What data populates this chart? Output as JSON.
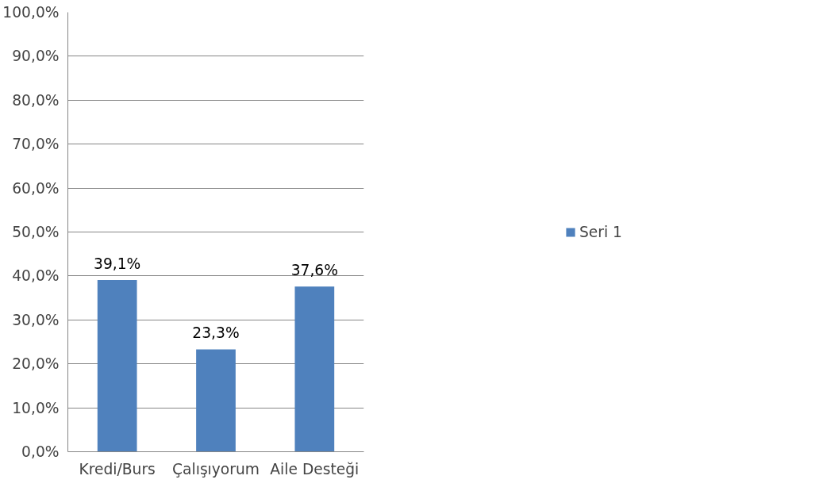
{
  "chart_data": {
    "type": "bar",
    "categories": [
      "Kredi/Burs",
      "Çalışıyorum",
      "Aile Desteği"
    ],
    "series": [
      {
        "name": "Seri 1",
        "color": "#4f81bd",
        "values": [
          39.1,
          23.3,
          37.6
        ],
        "value_labels": [
          "39,1%",
          "23,3%",
          "37,6%"
        ]
      }
    ],
    "ylim": [
      0,
      100
    ],
    "yticks": [
      {
        "value": 0,
        "label": "0,0%"
      },
      {
        "value": 10,
        "label": "10,0%"
      },
      {
        "value": 20,
        "label": "20,0%"
      },
      {
        "value": 30,
        "label": "30,0%"
      },
      {
        "value": 40,
        "label": "40,0%"
      },
      {
        "value": 50,
        "label": "50,0%"
      },
      {
        "value": 60,
        "label": "60,0%"
      },
      {
        "value": 70,
        "label": "70,0%"
      },
      {
        "value": 80,
        "label": "80,0%"
      },
      {
        "value": 90,
        "label": "90,0%"
      },
      {
        "value": 100,
        "label": "100,0%"
      }
    ],
    "grid": "y",
    "legend": "right"
  }
}
